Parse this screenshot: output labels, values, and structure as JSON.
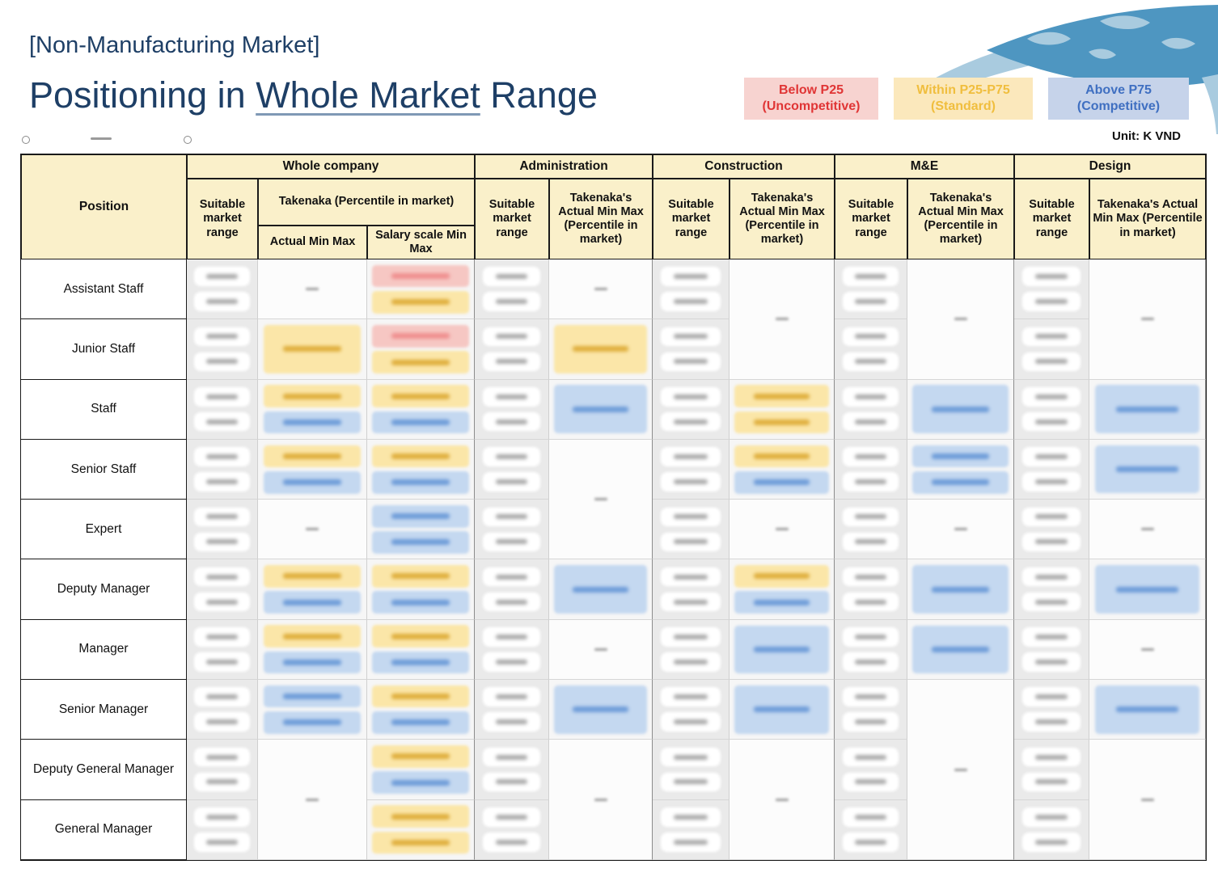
{
  "title": {
    "line1": "[Non-Manufacturing Market]",
    "line2_prefix": "Positioning in ",
    "line2_underlined": "Whole Market",
    "line2_suffix": " Range"
  },
  "unit_label": "Unit: K VND",
  "legend": [
    {
      "label_line1": "Below P25",
      "label_line2": "(Uncompetitive)"
    },
    {
      "label_line1": "Within P25-P75",
      "label_line2": "(Standard)"
    },
    {
      "label_line1": "Above P75",
      "label_line2": "(Competitive)"
    }
  ],
  "decor": {
    "handle_icon": "",
    "dash_icon": ""
  },
  "palette": {
    "title_color": "#1E3F66",
    "header_bg": "#FAF0CA",
    "chip_yellow_bg": "#FBE6A8",
    "chip_yellow_text": "#DFAE3C",
    "chip_blue_bg": "#C4D8F0",
    "chip_blue_text": "#6C9BD8",
    "chip_red_bg": "#F6C7C3",
    "chip_red_text": "#EF8E8E",
    "legend_red_bg": "#F7D3D0",
    "legend_red_fg": "#E03535",
    "legend_yellow_bg": "#FBE8BC",
    "legend_yellow_fg": "#F0BE3E",
    "legend_blue_bg": "#C6D3EA",
    "legend_blue_fg": "#3F6FC1"
  },
  "table": {
    "header": {
      "position": "Position",
      "suitable": "Suitable market range",
      "takenaka_percentile": "Takenaka (Percentile in market)",
      "actual_min_max": "Actual Min Max",
      "salary_scale": "Salary scale Min Max",
      "takenaka_actual": "Takenaka's Actual Min Max (Percentile in market)",
      "groups": [
        "Whole company",
        "Administration",
        "Construction",
        "M&E",
        "Design"
      ]
    },
    "positions": [
      "Assistant Staff",
      "Junior Staff",
      "Staff",
      "Senior Staff",
      "Expert",
      "Deputy Manager",
      "Manager",
      "Senior Manager",
      "Deputy General Manager",
      "General Manager"
    ],
    "note": "numeric cell values are blurred/illegible in source; only highlight colors are represented",
    "columns": [
      {
        "key": "wc_suitable",
        "col": 2,
        "type": "suitable"
      },
      {
        "key": "wc_actual",
        "col": 3,
        "type": "chips"
      },
      {
        "key": "wc_salary",
        "col": 4,
        "type": "chips",
        "groupEnd": true
      },
      {
        "key": "admin_suitable",
        "col": 5,
        "type": "suitable"
      },
      {
        "key": "admin_actual",
        "col": 6,
        "type": "chips",
        "groupEnd": true
      },
      {
        "key": "constr_suitable",
        "col": 7,
        "type": "suitable"
      },
      {
        "key": "constr_actual",
        "col": 8,
        "type": "chips",
        "groupEnd": true
      },
      {
        "key": "me_suitable",
        "col": 9,
        "type": "suitable"
      },
      {
        "key": "me_actual",
        "col": 10,
        "type": "chips",
        "groupEnd": true
      },
      {
        "key": "design_suitable",
        "col": 11,
        "type": "suitable"
      },
      {
        "key": "design_actual",
        "col": 12,
        "type": "chips",
        "groupEnd": true
      }
    ],
    "cells": {
      "wc_actual": [
        {
          "row": 0,
          "kind": "dash"
        },
        {
          "row": 1,
          "kind": "chip",
          "color": "yellow"
        },
        {
          "row": 2,
          "kind": "pair",
          "top": "yellow",
          "bottom": "blue"
        },
        {
          "row": 3,
          "kind": "pair",
          "top": "yellow",
          "bottom": "blue"
        },
        {
          "row": 4,
          "kind": "dash"
        },
        {
          "row": 5,
          "kind": "pair",
          "top": "yellow",
          "bottom": "blue"
        },
        {
          "row": 6,
          "kind": "pair",
          "top": "yellow",
          "bottom": "blue"
        },
        {
          "row": 7,
          "kind": "pair",
          "top": "blue",
          "bottom": "blue"
        },
        {
          "row": 8,
          "span": 2,
          "kind": "dash"
        }
      ],
      "wc_salary": [
        {
          "row": 0,
          "kind": "pair",
          "top": "red",
          "bottom": "yellow"
        },
        {
          "row": 1,
          "kind": "pair",
          "top": "red",
          "bottom": "yellow"
        },
        {
          "row": 2,
          "kind": "pair",
          "top": "yellow",
          "bottom": "blue"
        },
        {
          "row": 3,
          "kind": "pair",
          "top": "yellow",
          "bottom": "blue"
        },
        {
          "row": 4,
          "kind": "pair",
          "top": "blue",
          "bottom": "blue"
        },
        {
          "row": 5,
          "kind": "pair",
          "top": "yellow",
          "bottom": "blue"
        },
        {
          "row": 6,
          "kind": "pair",
          "top": "yellow",
          "bottom": "blue"
        },
        {
          "row": 7,
          "kind": "pair",
          "top": "yellow",
          "bottom": "blue"
        },
        {
          "row": 8,
          "kind": "pair",
          "top": "yellow",
          "bottom": "blue"
        },
        {
          "row": 9,
          "kind": "pair",
          "top": "yellow",
          "bottom": "yellow"
        }
      ],
      "admin_actual": [
        {
          "row": 0,
          "kind": "dash"
        },
        {
          "row": 1,
          "kind": "chip",
          "color": "yellow"
        },
        {
          "row": 2,
          "kind": "chip",
          "color": "blue"
        },
        {
          "row": 3,
          "span": 2,
          "kind": "dash"
        },
        {
          "row": 5,
          "kind": "chip",
          "color": "blue"
        },
        {
          "row": 6,
          "kind": "dash"
        },
        {
          "row": 7,
          "kind": "chip",
          "color": "blue"
        },
        {
          "row": 8,
          "span": 2,
          "kind": "dash"
        }
      ],
      "constr_actual": [
        {
          "row": 0,
          "span": 2,
          "kind": "dash"
        },
        {
          "row": 2,
          "kind": "pair",
          "top": "yellow",
          "bottom": "yellow"
        },
        {
          "row": 3,
          "kind": "pair",
          "top": "yellow",
          "bottom": "blue"
        },
        {
          "row": 4,
          "kind": "dash"
        },
        {
          "row": 5,
          "kind": "pair",
          "top": "yellow",
          "bottom": "blue"
        },
        {
          "row": 6,
          "kind": "chip",
          "color": "blue"
        },
        {
          "row": 7,
          "kind": "chip",
          "color": "blue"
        },
        {
          "row": 8,
          "span": 2,
          "kind": "dash"
        }
      ],
      "me_actual": [
        {
          "row": 0,
          "span": 2,
          "kind": "dash"
        },
        {
          "row": 2,
          "kind": "chip",
          "color": "blue"
        },
        {
          "row": 3,
          "kind": "pair",
          "top": "blue",
          "bottom": "blue"
        },
        {
          "row": 4,
          "kind": "dash"
        },
        {
          "row": 5,
          "kind": "chip",
          "color": "blue"
        },
        {
          "row": 6,
          "kind": "chip",
          "color": "blue"
        },
        {
          "row": 7,
          "span": 3,
          "kind": "dash"
        }
      ],
      "design_actual": [
        {
          "row": 0,
          "span": 2,
          "kind": "dash"
        },
        {
          "row": 2,
          "kind": "chip",
          "color": "blue"
        },
        {
          "row": 3,
          "kind": "chip",
          "color": "blue"
        },
        {
          "row": 4,
          "kind": "dash"
        },
        {
          "row": 5,
          "kind": "chip",
          "color": "blue"
        },
        {
          "row": 6,
          "kind": "dash"
        },
        {
          "row": 7,
          "kind": "chip",
          "color": "blue"
        },
        {
          "row": 8,
          "span": 2,
          "kind": "dash"
        }
      ]
    }
  }
}
